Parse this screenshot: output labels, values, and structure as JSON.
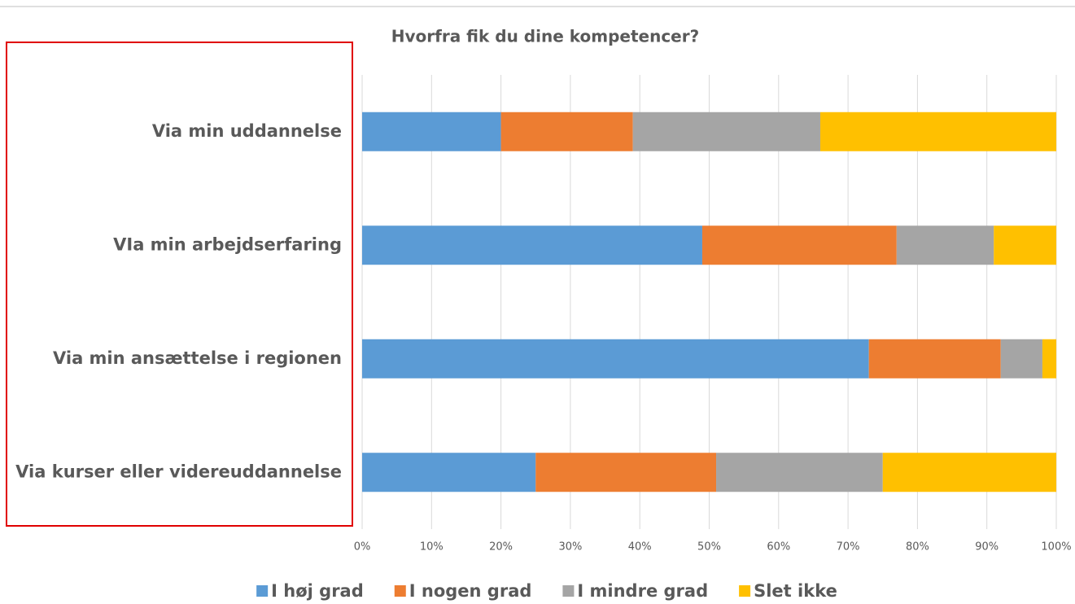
{
  "chart_data": {
    "type": "stacked_barh",
    "title": "Hvorfra fik du dine kompetencer?",
    "categories": [
      "Via min uddannelse",
      "VIa min arbejdserfaring",
      "Via min ansættelse i regionen",
      "Via kurser eller videreuddannelse"
    ],
    "series": [
      {
        "name": "I høj grad",
        "color": "#5b9bd5",
        "values": [
          20,
          49,
          73,
          25
        ]
      },
      {
        "name": "I nogen grad",
        "color": "#ed7d31",
        "values": [
          19,
          28,
          19,
          26
        ]
      },
      {
        "name": "I mindre grad",
        "color": "#a5a5a5",
        "values": [
          27,
          14,
          6,
          24
        ]
      },
      {
        "name": "Slet ikke",
        "color": "#ffc000",
        "values": [
          34,
          9,
          2,
          25
        ]
      }
    ],
    "xlim": [
      0,
      100
    ],
    "xticks": [
      {
        "value": 0,
        "label": "0%"
      },
      {
        "value": 10,
        "label": "10%"
      },
      {
        "value": 20,
        "label": "20%"
      },
      {
        "value": 30,
        "label": "30%"
      },
      {
        "value": 40,
        "label": "40%"
      },
      {
        "value": 50,
        "label": "50%"
      },
      {
        "value": 60,
        "label": "60%"
      },
      {
        "value": 70,
        "label": "70%"
      },
      {
        "value": 80,
        "label": "80%"
      },
      {
        "value": 90,
        "label": "90%"
      },
      {
        "value": 100,
        "label": "100%"
      }
    ],
    "grid": true,
    "legend": "bottom"
  }
}
